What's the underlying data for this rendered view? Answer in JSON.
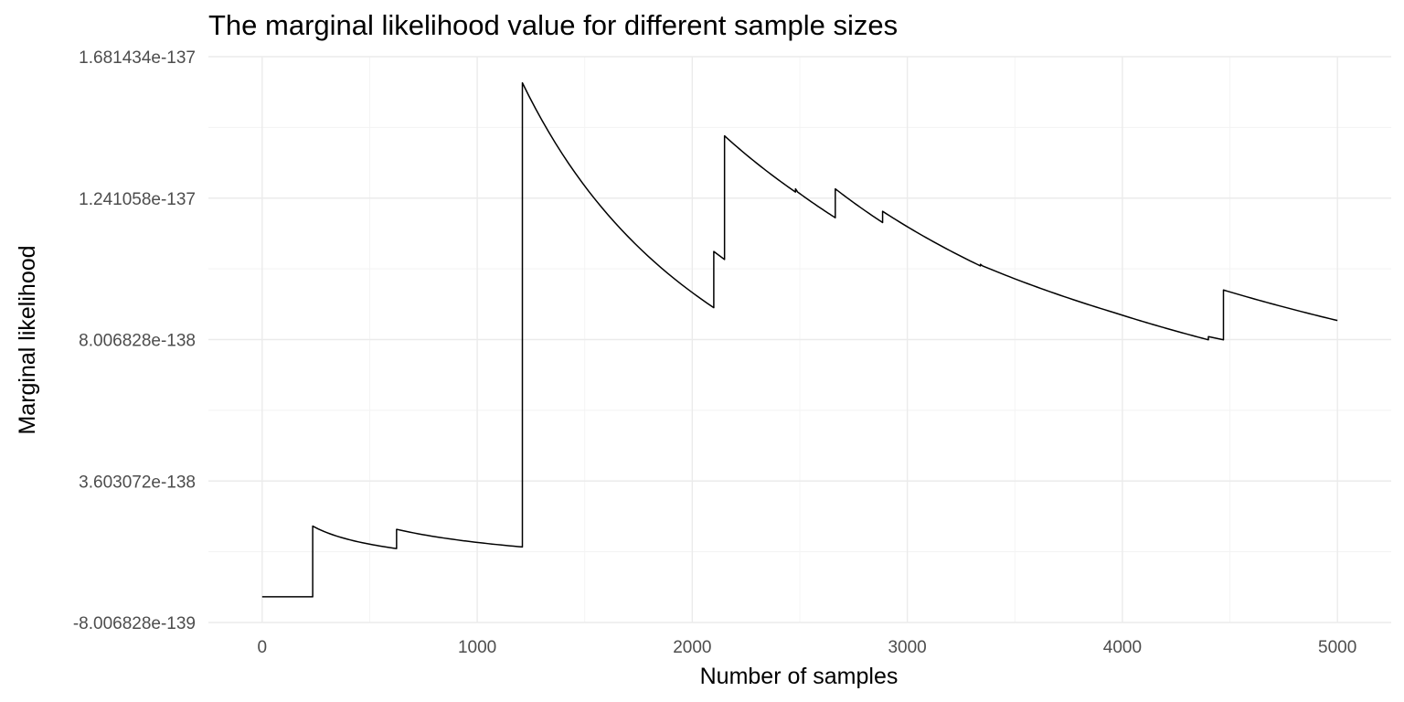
{
  "chart_data": {
    "type": "line",
    "title": "The marginal likelihood value for different sample sizes",
    "xlabel": "Number of samples",
    "ylabel": "Marginal likelihood",
    "xlim": [
      -250,
      5250
    ],
    "ylim": [
      -8.006828e-139,
      1.681434e-137
    ],
    "x_ticks": [
      0,
      1000,
      2000,
      3000,
      4000,
      5000
    ],
    "x_tick_labels": [
      "0",
      "1000",
      "2000",
      "3000",
      "4000",
      "5000"
    ],
    "y_ticks": [
      -8.006828e-139,
      3.603072e-138,
      8.006828e-138,
      1.241058e-137,
      1.681434e-137
    ],
    "y_tick_labels": [
      "-8.006828e-139",
      "3.603072e-138",
      "8.006828e-138",
      "1.241058e-137",
      "1.681434e-137"
    ],
    "grid": true,
    "legend": "none",
    "series": [
      {
        "color": "#000000",
        "segments": [
          {
            "x0": 0,
            "x1": 235,
            "y0": 0,
            "y1": 0,
            "curve": "flat"
          },
          {
            "x0": 235,
            "x1": 625,
            "y0": 2.2e-138,
            "y1": 1.5e-138,
            "curve": "decay"
          },
          {
            "x0": 625,
            "x1": 1210,
            "y0": 2.1e-138,
            "y1": 1.55e-138,
            "curve": "decay"
          },
          {
            "x0": 1210,
            "x1": 2100,
            "y0": 1.6e-137,
            "y1": 9e-138,
            "curve": "decay"
          },
          {
            "x0": 2100,
            "x1": 2150,
            "y0": 1.075e-137,
            "y1": 1.05e-137,
            "curve": "linear"
          },
          {
            "x0": 2150,
            "x1": 2480,
            "y0": 1.435e-137,
            "y1": 1.26e-137,
            "curve": "decay"
          },
          {
            "x0": 2480,
            "x1": 2490,
            "y0": 1.27e-137,
            "y1": 1.26e-137,
            "curve": "linear"
          },
          {
            "x0": 2490,
            "x1": 2665,
            "y0": 1.26e-137,
            "y1": 1.18e-137,
            "curve": "decay"
          },
          {
            "x0": 2665,
            "x1": 2885,
            "y0": 1.27e-137,
            "y1": 1.165e-137,
            "curve": "decay"
          },
          {
            "x0": 2885,
            "x1": 3340,
            "y0": 1.2e-137,
            "y1": 1.03e-137,
            "curve": "decay"
          },
          {
            "x0": 3340,
            "x1": 3350,
            "y0": 1.035e-137,
            "y1": 1.03e-137,
            "curve": "linear"
          },
          {
            "x0": 3350,
            "x1": 3960,
            "y0": 1.03e-137,
            "y1": 8.85e-138,
            "curve": "decay"
          },
          {
            "x0": 3960,
            "x1": 4400,
            "y0": 8.85e-138,
            "y1": 8e-138,
            "curve": "decay"
          },
          {
            "x0": 4400,
            "x1": 4470,
            "y0": 8.1e-138,
            "y1": 8e-138,
            "curve": "linear"
          },
          {
            "x0": 4470,
            "x1": 5000,
            "y0": 9.55e-138,
            "y1": 8.6e-138,
            "curve": "decay"
          }
        ]
      }
    ]
  }
}
